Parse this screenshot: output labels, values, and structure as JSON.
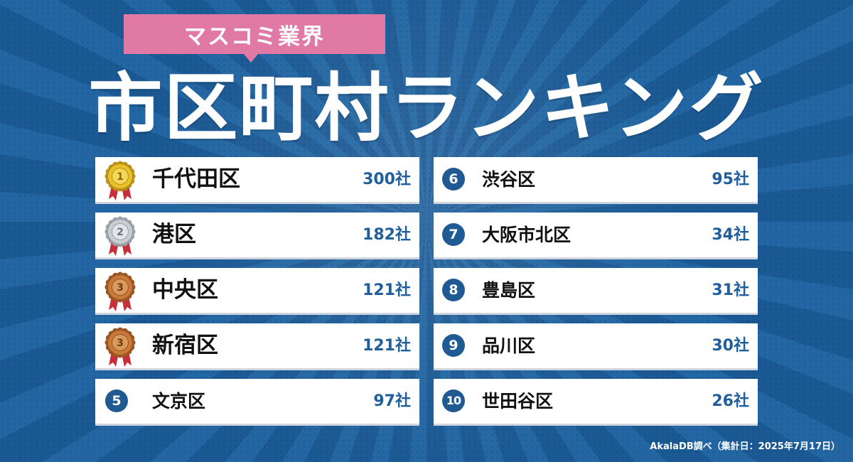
{
  "header": {
    "tag_label": "マスコミ業界",
    "title": "市区町村ランキング"
  },
  "ranking": {
    "left": [
      {
        "rank": "1",
        "name": "千代田区",
        "count": "300社",
        "medal": "gold"
      },
      {
        "rank": "2",
        "name": "港区",
        "count": "182社",
        "medal": "silver"
      },
      {
        "rank": "3",
        "name": "中央区",
        "count": "121社",
        "medal": "bronze"
      },
      {
        "rank": "3",
        "name": "新宿区",
        "count": "121社",
        "medal": "bronze"
      },
      {
        "rank": "5",
        "name": "文京区",
        "count": "97社"
      }
    ],
    "right": [
      {
        "rank": "6",
        "name": "渋谷区",
        "count": "95社"
      },
      {
        "rank": "7",
        "name": "大阪市北区",
        "count": "34社"
      },
      {
        "rank": "8",
        "name": "豊島区",
        "count": "31社"
      },
      {
        "rank": "9",
        "name": "品川区",
        "count": "30社"
      },
      {
        "rank": "10",
        "name": "世田谷区",
        "count": "26社"
      }
    ]
  },
  "footer": {
    "credit": "AkalaDB調べ（集計日：2025年7月17日）"
  },
  "colors": {
    "background": "#1d5e9a",
    "tag": "#e07aa4",
    "count_text": "#1f5f9e",
    "badge": "#1f5a92",
    "gold": "#e8c22a",
    "silver": "#c9ccd1",
    "bronze": "#c87a3a",
    "ribbon": "#c7303a"
  },
  "icons": {
    "gold": "gold-medal-icon",
    "silver": "silver-medal-icon",
    "bronze": "bronze-medal-icon"
  }
}
